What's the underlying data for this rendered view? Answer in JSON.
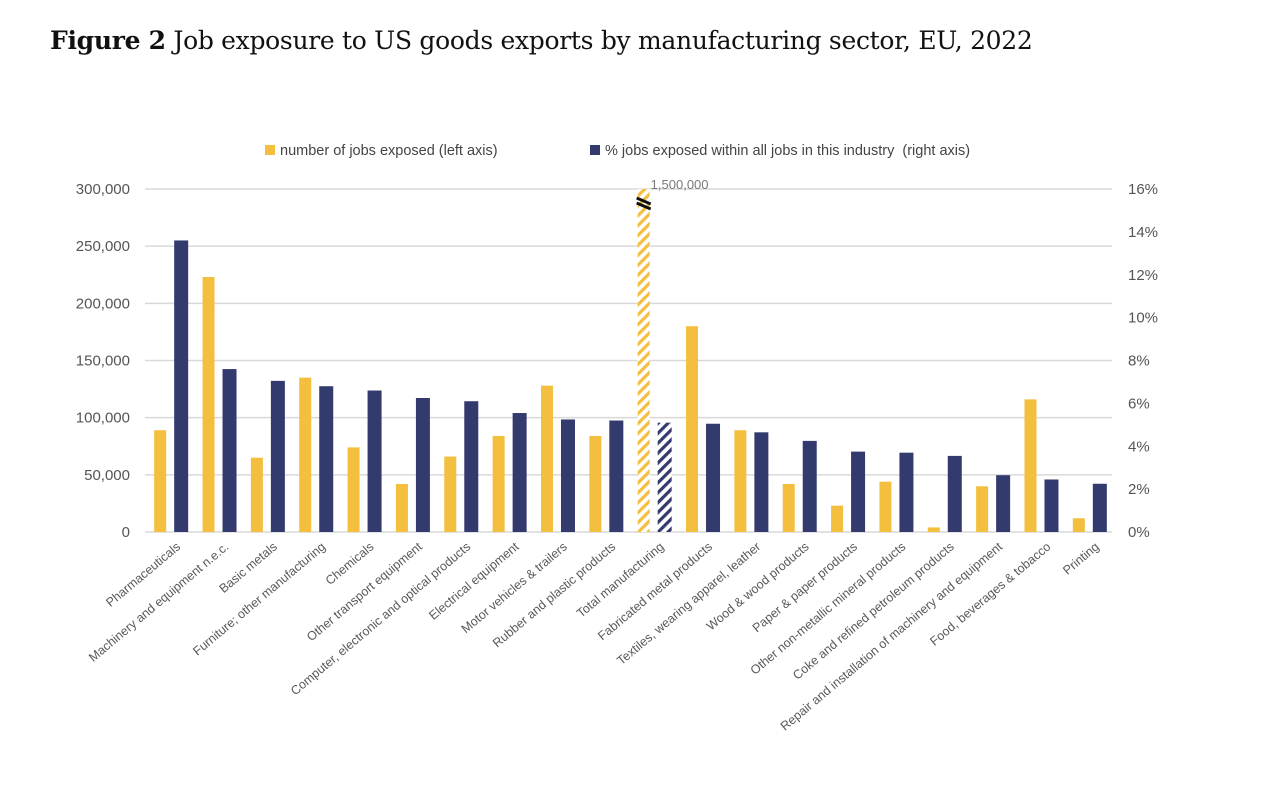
{
  "figure": {
    "label": "Figure 2",
    "title": "Job exposure to US goods exports by manufacturing sector, EU, 2022"
  },
  "chart_data": {
    "type": "bar",
    "title": "Job exposure to US goods exports by manufacturing sector, EU, 2022",
    "xlabel": "",
    "ylabel": "",
    "ylim": [
      0,
      300000
    ],
    "y2lim": [
      0,
      16
    ],
    "grid": true,
    "legend_position": "top-center",
    "left_ticks": [
      "0",
      "50,000",
      "100,000",
      "150,000",
      "200,000",
      "250,000",
      "300,000"
    ],
    "left_tick_values": [
      0,
      50000,
      100000,
      150000,
      200000,
      250000,
      300000
    ],
    "right_ticks": [
      "0%",
      "2%",
      "4%",
      "6%",
      "8%",
      "10%",
      "12%",
      "14%",
      "16%"
    ],
    "right_tick_values": [
      0,
      2,
      4,
      6,
      8,
      10,
      12,
      14,
      16
    ],
    "categories": [
      "Pharmaceuticals",
      "Machinery and equipment n.e.c.",
      "Basic metals",
      "Furniture; other manufacturing",
      "Chemicals",
      "Other transport equipment",
      "Computer, electronic and optical products",
      "Electrical equipment",
      "Motor vehicles & trailers",
      "Rubber and plastic products",
      "Total manufacturing",
      "Fabricated metal products",
      "Textiles, wearing apparel, leather",
      "Wood & wood products",
      "Paper & paper products",
      "Other non-metallic mineral products",
      "Coke and refined petroleum products",
      "Repair and installation of machinery and equipment",
      "Food, beverages & tobacco",
      "Printing"
    ],
    "series": [
      {
        "name": "number of jobs exposed (left axis)",
        "axis": "left",
        "color": "#F4BE3E",
        "values": [
          89000,
          223000,
          65000,
          135000,
          74000,
          42000,
          66000,
          84000,
          128000,
          84000,
          1500000,
          180000,
          89000,
          42000,
          23000,
          44000,
          4000,
          40000,
          116000,
          12000
        ]
      },
      {
        "name": "% jobs exposed within all jobs in this industry  (right axis)",
        "axis": "right",
        "color": "#333A6E",
        "values": [
          13.6,
          7.6,
          7.05,
          6.8,
          6.6,
          6.25,
          6.1,
          5.55,
          5.25,
          5.2,
          5.1,
          5.05,
          4.65,
          4.25,
          3.75,
          3.7,
          3.55,
          2.65,
          2.45,
          2.25
        ]
      }
    ],
    "highlighted_category": "Total manufacturing",
    "annotations": [
      {
        "category": "Total manufacturing",
        "series": 0,
        "text": "1,500,000",
        "note": "axis break; bar truncated at 300,000"
      }
    ]
  }
}
